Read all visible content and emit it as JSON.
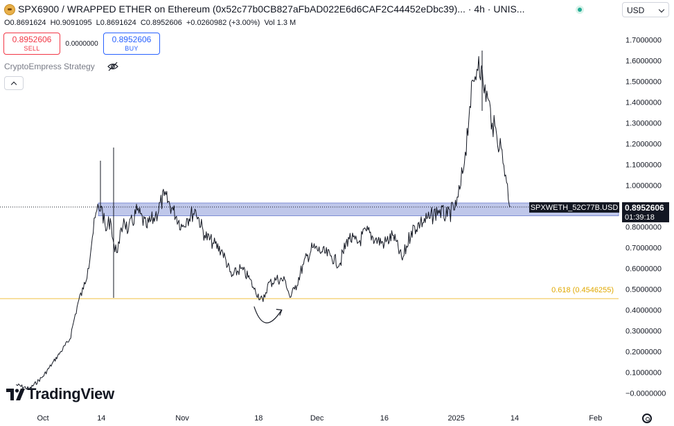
{
  "header": {
    "title": "SPX6900 / WRAPPED ETHER on Ethereum (0x52c77b0CB827aFbAD022E6d6CAF2C44452eDbc39)... · 4h · UNIS...",
    "currency": "USD",
    "ohlc": {
      "open": "O0.8691624",
      "high": "H0.9091095",
      "low": "L0.8691624",
      "close": "C0.8952606",
      "change": "+0.0260982 (+3.00%)",
      "volume": "Vol 1.3 M"
    }
  },
  "trade": {
    "sell_price": "0.8952606",
    "sell_label": "SELL",
    "spread": "0.0000000",
    "buy_price": "0.8952606",
    "buy_label": "BUY"
  },
  "indicator": {
    "name": "CryptoEmpress Strategy"
  },
  "brand": {
    "name": "TradingView"
  },
  "colors": {
    "up": "#22ab94",
    "down": "#f23645",
    "buy": "#2962ff",
    "fib_line": "#f0c040",
    "zone": "#7f8fd6",
    "price_line": "#131722"
  },
  "chart_data": {
    "type": "line",
    "title": "SPX6900 / WRAPPED ETHER",
    "interval": "4h",
    "xlabel": "",
    "ylabel": "",
    "ylim": [
      -0.05,
      1.75
    ],
    "y_ticks": [
      -0.0,
      0.1,
      0.2,
      0.3,
      0.4,
      0.5,
      0.6,
      0.7,
      0.8,
      0.9,
      1.0,
      1.1,
      1.2,
      1.3,
      1.4,
      1.5,
      1.6,
      1.7
    ],
    "y_tick_labels": [
      "−0.0000000",
      "0.1000000",
      "0.2000000",
      "0.3000000",
      "0.4000000",
      "0.5000000",
      "0.6000000",
      "0.7000000",
      "0.8000000",
      "0.9000000",
      "1.0000000",
      "1.1000000",
      "1.2000000",
      "1.3000000",
      "1.4000000",
      "1.5000000",
      "1.6000000",
      "1.7000000"
    ],
    "x_range": [
      "2024-09-25",
      "2025-02-04"
    ],
    "x_ticks": [
      {
        "date": "2024-10-01",
        "label": "Oct"
      },
      {
        "date": "2024-10-14",
        "label": "14"
      },
      {
        "date": "2024-11-01",
        "label": "Nov"
      },
      {
        "date": "2024-11-18",
        "label": "18"
      },
      {
        "date": "2024-12-01",
        "label": "Dec"
      },
      {
        "date": "2024-12-16",
        "label": "16"
      },
      {
        "date": "2025-01-01",
        "label": "2025"
      },
      {
        "date": "2025-01-14",
        "label": "14"
      },
      {
        "date": "2025-02-01",
        "label": "Feb"
      }
    ],
    "series": [
      {
        "name": "",
        "x": [
          "2024-09-25",
          "2024-09-28",
          "2024-10-01",
          "2024-10-03",
          "2024-10-05",
          "2024-10-07",
          "2024-10-08",
          "2024-10-09",
          "2024-10-10",
          "2024-10-11",
          "2024-10-12",
          "2024-10-13",
          "2024-10-14",
          "2024-10-15",
          "2024-10-16",
          "2024-10-17",
          "2024-10-18",
          "2024-10-19",
          "2024-10-20",
          "2024-10-22",
          "2024-10-24",
          "2024-10-26",
          "2024-10-28",
          "2024-10-30",
          "2024-11-01",
          "2024-11-02",
          "2024-11-04",
          "2024-11-06",
          "2024-11-08",
          "2024-11-10",
          "2024-11-12",
          "2024-11-14",
          "2024-11-16",
          "2024-11-17",
          "2024-11-19",
          "2024-11-20",
          "2024-11-22",
          "2024-11-24",
          "2024-11-25",
          "2024-11-26",
          "2024-11-28",
          "2024-11-30",
          "2024-12-02",
          "2024-12-04",
          "2024-12-06",
          "2024-12-08",
          "2024-12-10",
          "2024-12-12",
          "2024-12-14",
          "2024-12-16",
          "2024-12-18",
          "2024-12-20",
          "2024-12-22",
          "2024-12-24",
          "2024-12-26",
          "2024-12-28",
          "2024-12-30",
          "2025-01-01",
          "2025-01-02",
          "2025-01-03",
          "2025-01-04",
          "2025-01-05",
          "2025-01-06",
          "2025-01-07",
          "2025-01-08",
          "2025-01-09",
          "2025-01-10",
          "2025-01-11",
          "2025-01-12",
          "2025-01-13"
        ],
        "values": [
          0.04,
          0.02,
          0.08,
          0.14,
          0.2,
          0.26,
          0.36,
          0.45,
          0.5,
          0.6,
          0.75,
          0.88,
          0.9,
          0.78,
          0.84,
          0.68,
          0.72,
          0.84,
          0.78,
          0.88,
          0.8,
          0.85,
          0.95,
          0.88,
          0.8,
          0.84,
          0.88,
          0.76,
          0.72,
          0.68,
          0.56,
          0.6,
          0.55,
          0.5,
          0.44,
          0.52,
          0.55,
          0.54,
          0.46,
          0.5,
          0.62,
          0.7,
          0.68,
          0.66,
          0.62,
          0.75,
          0.72,
          0.78,
          0.74,
          0.72,
          0.76,
          0.64,
          0.78,
          0.82,
          0.84,
          0.88,
          0.85,
          0.9,
          1.0,
          1.16,
          1.38,
          1.5,
          1.62,
          1.48,
          1.42,
          1.3,
          1.24,
          1.18,
          1.05,
          0.8952606
        ]
      }
    ],
    "annotations": [
      {
        "type": "zone",
        "y_low": 0.853,
        "y_high": 0.915
      },
      {
        "type": "hline",
        "label": "0.618 (0.4546255)",
        "y": 0.4546255
      },
      {
        "type": "curved-arrow",
        "x_start": "2024-11-17",
        "x_end": "2024-11-23",
        "y": 0.37
      }
    ],
    "last_price": {
      "symbol": "SPXWETH_52C77B.USD",
      "value": 0.8952606,
      "label": "0.8952606",
      "countdown": "01:39:18"
    },
    "grid": false
  }
}
